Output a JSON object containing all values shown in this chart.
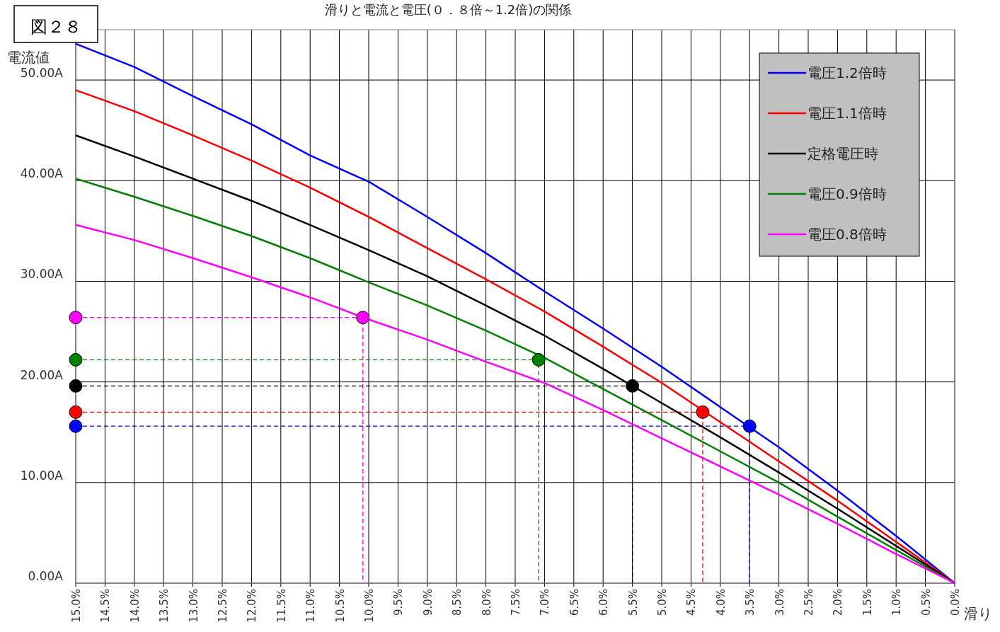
{
  "chart_data": {
    "type": "line",
    "title": "滑りと電流と電圧(０．８倍～1.2倍)の関係",
    "xlabel": "滑り",
    "ylabel": "電流値",
    "annotations": [
      "図２８"
    ],
    "xlim": [
      15,
      0
    ],
    "ylim": [
      0,
      55
    ],
    "xticks": [
      {
        "value": 15,
        "label": "15.0%"
      },
      {
        "value": 14.5,
        "label": "14.5%"
      },
      {
        "value": 14,
        "label": "14.0%"
      },
      {
        "value": 13.5,
        "label": "13.5%"
      },
      {
        "value": 13,
        "label": "13.0%"
      },
      {
        "value": 12.5,
        "label": "12.5%"
      },
      {
        "value": 12,
        "label": "12.0%"
      },
      {
        "value": 11.5,
        "label": "11.5%"
      },
      {
        "value": 11,
        "label": "11.0%"
      },
      {
        "value": 10.5,
        "label": "10.5%"
      },
      {
        "value": 10,
        "label": "10.0%"
      },
      {
        "value": 9.5,
        "label": "9.5%"
      },
      {
        "value": 9,
        "label": "9.0%"
      },
      {
        "value": 8.5,
        "label": "8.5%"
      },
      {
        "value": 8,
        "label": "8.0%"
      },
      {
        "value": 7.5,
        "label": "7.5%"
      },
      {
        "value": 7,
        "label": "7.0%"
      },
      {
        "value": 6.5,
        "label": "6.5%"
      },
      {
        "value": 6,
        "label": "6.0%"
      },
      {
        "value": 5.5,
        "label": "5.5%"
      },
      {
        "value": 5,
        "label": "5.0%"
      },
      {
        "value": 4.5,
        "label": "4.5%"
      },
      {
        "value": 4,
        "label": "4.0%"
      },
      {
        "value": 3.5,
        "label": "3.5%"
      },
      {
        "value": 3,
        "label": "3.0%"
      },
      {
        "value": 2.5,
        "label": "2.5%"
      },
      {
        "value": 2,
        "label": "2.0%"
      },
      {
        "value": 1.5,
        "label": "1.5%"
      },
      {
        "value": 1,
        "label": "1.0%"
      },
      {
        "value": 0.5,
        "label": "0.5%"
      },
      {
        "value": 0,
        "label": "0.0%"
      }
    ],
    "yticks": [
      {
        "value": 0,
        "label": "0.00A"
      },
      {
        "value": 10,
        "label": "10.00A"
      },
      {
        "value": 20,
        "label": "20.00A"
      },
      {
        "value": 30,
        "label": "30.00A"
      },
      {
        "value": 40,
        "label": "40.00A"
      },
      {
        "value": 50,
        "label": "50.00A"
      }
    ],
    "grid": true,
    "legend": "top right",
    "series": [
      {
        "type": "line",
        "line_style": "dashed",
        "color": "#ff00ff",
        "x": [
          15,
          10.1,
          10.1
        ],
        "values": [
          26.4,
          26.4,
          0
        ]
      },
      {
        "type": "line",
        "line_style": "dashed",
        "color": "#008000",
        "x": [
          15,
          7.1,
          7.1
        ],
        "values": [
          22.2,
          22.2,
          0
        ]
      },
      {
        "type": "line",
        "line_style": "dashed",
        "color": "#000000",
        "x": [
          15,
          5.5,
          5.5
        ],
        "values": [
          19.6,
          19.6,
          0
        ]
      },
      {
        "type": "line",
        "line_style": "dashed",
        "color": "#ff0000",
        "x": [
          15,
          4.3,
          4.3
        ],
        "values": [
          17.0,
          17.0,
          0
        ]
      },
      {
        "type": "line",
        "line_style": "dashed",
        "color": "#0000ff",
        "x": [
          15,
          3.5,
          3.5
        ],
        "values": [
          15.6,
          15.6,
          0
        ]
      },
      {
        "name": "電圧1.2倍時",
        "line_style": "solid",
        "color": "#0000ff",
        "x": [
          15,
          14,
          13,
          12,
          11,
          10,
          9,
          8,
          7,
          6,
          5,
          4,
          3,
          2,
          1,
          0
        ],
        "values": [
          53.6,
          51.3,
          48.4,
          45.6,
          42.5,
          39.9,
          36.4,
          32.8,
          29.0,
          25.3,
          21.5,
          17.5,
          13.5,
          9.2,
          4.7,
          0
        ]
      },
      {
        "name": "電圧1.1倍時",
        "line_style": "solid",
        "color": "#ff0000",
        "x": [
          15,
          14,
          13,
          12,
          11,
          10,
          9,
          8,
          7,
          6,
          5,
          4,
          3,
          2,
          1,
          0
        ],
        "values": [
          49.0,
          46.9,
          44.5,
          42.0,
          39.3,
          36.4,
          33.3,
          30.2,
          27.0,
          23.5,
          19.9,
          16.0,
          12.1,
          8.2,
          4.1,
          0
        ]
      },
      {
        "name": "定格電圧時",
        "line_style": "solid",
        "color": "#000000",
        "x": [
          15,
          14,
          13,
          12,
          11,
          10,
          9,
          8,
          7,
          6,
          5,
          4,
          3,
          2,
          1,
          0
        ],
        "values": [
          44.5,
          42.4,
          40.2,
          38.0,
          35.6,
          33.1,
          30.5,
          27.6,
          24.6,
          21.3,
          17.9,
          14.5,
          11.0,
          7.4,
          3.7,
          0
        ]
      },
      {
        "name": "電圧0.9倍時",
        "line_style": "solid",
        "color": "#008000",
        "x": [
          15,
          14,
          13,
          12,
          11,
          10,
          9,
          8,
          7,
          6,
          5,
          4,
          3,
          2,
          1,
          0
        ],
        "values": [
          40.2,
          38.4,
          36.5,
          34.5,
          32.3,
          29.9,
          27.6,
          25.1,
          22.4,
          19.3,
          16.2,
          13.1,
          10.0,
          6.6,
          3.3,
          0
        ]
      },
      {
        "name": "電圧0.8倍時",
        "line_style": "solid",
        "color": "#ff00ff",
        "x": [
          15,
          14,
          13,
          12,
          11,
          10,
          9,
          8,
          7,
          6,
          5,
          4,
          3,
          2,
          1,
          0
        ],
        "values": [
          35.6,
          34.1,
          32.3,
          30.4,
          28.4,
          26.2,
          24.2,
          22.0,
          19.9,
          17.2,
          14.4,
          11.6,
          8.8,
          5.9,
          2.9,
          0
        ]
      },
      {
        "type": "scatter",
        "marker": "circle",
        "color": "#ff00ff",
        "x": [
          15,
          10.1
        ],
        "values": [
          26.4,
          26.4
        ]
      },
      {
        "type": "scatter",
        "marker": "circle",
        "color": "#008000",
        "x": [
          15,
          7.1
        ],
        "values": [
          22.2,
          22.2
        ]
      },
      {
        "type": "scatter",
        "marker": "circle",
        "color": "#000000",
        "x": [
          15,
          5.5
        ],
        "values": [
          19.6,
          19.6
        ]
      },
      {
        "type": "scatter",
        "marker": "circle",
        "color": "#ff0000",
        "x": [
          15,
          4.3
        ],
        "values": [
          17.0,
          17.0
        ]
      },
      {
        "type": "scatter",
        "marker": "circle",
        "color": "#0000ff",
        "x": [
          15,
          3.5
        ],
        "values": [
          15.6,
          15.6
        ]
      }
    ]
  }
}
